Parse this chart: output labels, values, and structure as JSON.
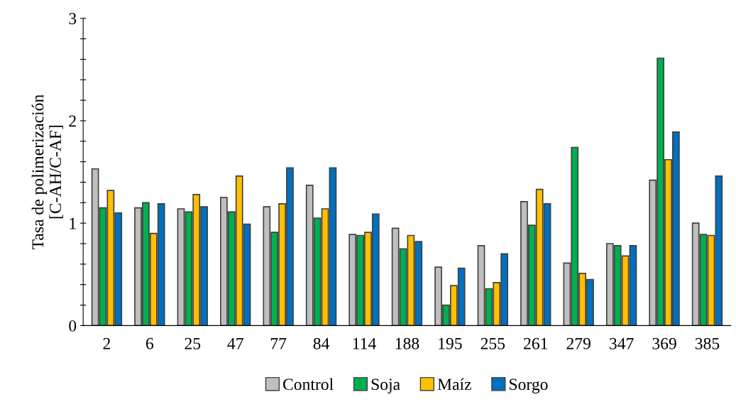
{
  "chart_data": {
    "type": "bar",
    "ylabel": "Tasa de polimerización\n[C-AH/C-AF]",
    "categories": [
      "2",
      "6",
      "25",
      "47",
      "77",
      "84",
      "114",
      "188",
      "195",
      "255",
      "261",
      "279",
      "347",
      "369",
      "385"
    ],
    "series": [
      {
        "name": "Control",
        "color": "#bfbfbf",
        "values": [
          1.53,
          1.15,
          1.14,
          1.25,
          1.16,
          1.37,
          0.89,
          0.95,
          0.57,
          0.78,
          1.21,
          0.61,
          0.8,
          1.42,
          1.0
        ]
      },
      {
        "name": "Soja",
        "color": "#00b050",
        "values": [
          1.15,
          1.2,
          1.11,
          1.11,
          0.91,
          1.05,
          0.88,
          0.75,
          0.2,
          0.36,
          0.98,
          1.74,
          0.78,
          2.61,
          0.89
        ]
      },
      {
        "name": "Maíz",
        "color": "#ffc000",
        "values": [
          1.32,
          0.9,
          1.28,
          1.46,
          1.19,
          1.14,
          0.91,
          0.88,
          0.39,
          0.42,
          1.33,
          0.51,
          0.68,
          1.62,
          0.88
        ]
      },
      {
        "name": "Sorgo",
        "color": "#0070c0",
        "values": [
          1.1,
          1.19,
          1.16,
          0.99,
          1.54,
          1.54,
          1.09,
          0.82,
          0.56,
          0.7,
          1.19,
          0.45,
          0.78,
          1.89,
          1.46
        ]
      }
    ],
    "ylim": [
      0,
      3
    ],
    "yticks": [
      0,
      {
        "value": 0.2,
        "label": null
      },
      {
        "value": 0.4,
        "label": null
      },
      {
        "value": 0.6,
        "label": null
      },
      {
        "value": 0.8,
        "label": null
      },
      1,
      {
        "value": 1.2,
        "label": null
      },
      {
        "value": 1.4,
        "label": null
      },
      {
        "value": 1.6,
        "label": null
      },
      {
        "value": 1.8,
        "label": null
      },
      2,
      {
        "value": 2.2,
        "label": null
      },
      {
        "value": 2.4,
        "label": null
      },
      {
        "value": 2.6,
        "label": null
      },
      {
        "value": 2.8,
        "label": null
      },
      3
    ],
    "grid": false,
    "legend": "bottom"
  }
}
